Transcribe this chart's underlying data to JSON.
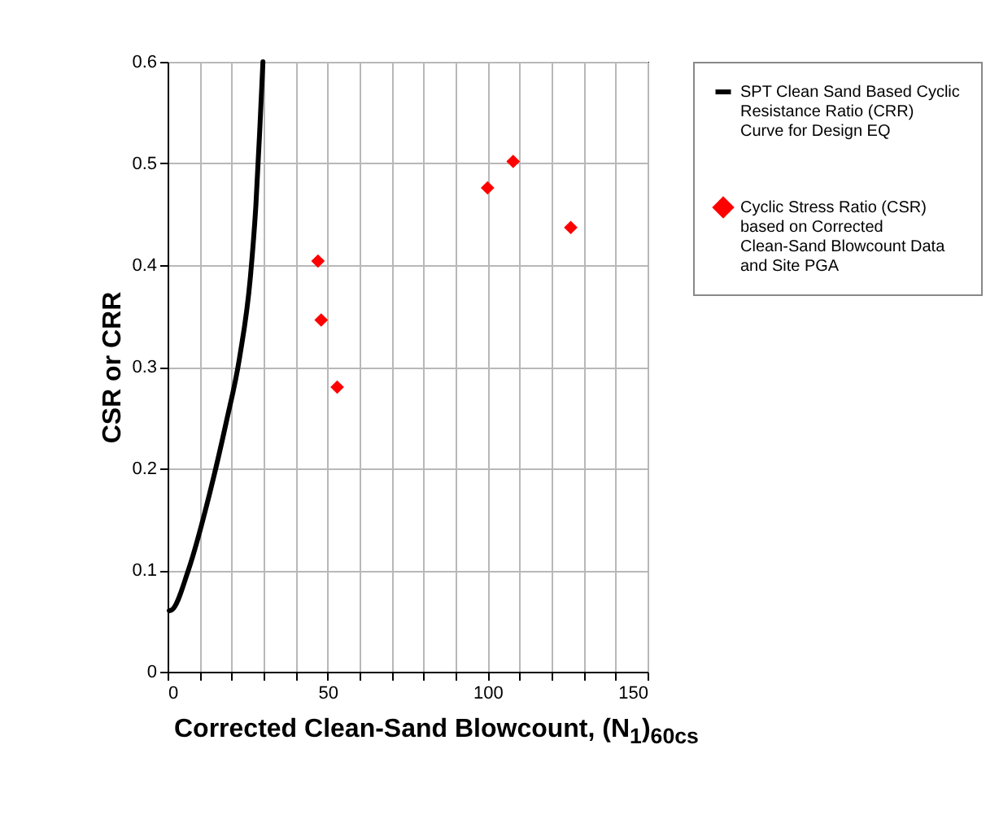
{
  "chart_data": {
    "type": "scatter",
    "xlabel": "Corrected Clean-Sand Blowcount, (N$_{1}$)$_{60cs}$",
    "ylabel": "CSR or CRR",
    "xlim": [
      0,
      150
    ],
    "ylim": [
      0,
      0.6
    ],
    "xticks": [
      0,
      {
        "value": 10,
        "label": null
      },
      {
        "value": 20,
        "label": null
      },
      {
        "value": 30,
        "label": null
      },
      {
        "value": 40,
        "label": null
      },
      50,
      {
        "value": 60,
        "label": null
      },
      {
        "value": 70,
        "label": null
      },
      {
        "value": 80,
        "label": null
      },
      {
        "value": 90,
        "label": null
      },
      100,
      {
        "value": 110,
        "label": null
      },
      {
        "value": 120,
        "label": null
      },
      {
        "value": 130,
        "label": null
      },
      {
        "value": 140,
        "label": null
      },
      150
    ],
    "yticks": [
      0,
      0.1,
      0.2,
      0.3,
      0.4,
      0.5,
      0.6
    ],
    "grid": true,
    "legend": "right",
    "marker": "diamond",
    "series": [
      {
        "name": "SPT Clean Sand Based Cyclic Resistance Ratio (CRR) Curve for Design EQ",
        "type": "line",
        "color": "#000000",
        "marker": "none",
        "x": [
          0.5,
          1.4,
          6.4,
          13.2,
          18.3,
          22.5,
          25.9,
          27.6,
          28.9,
          29.8
        ],
        "values": [
          0.06,
          0.061,
          0.099,
          0.176,
          0.245,
          0.309,
          0.389,
          0.459,
          0.539,
          0.6
        ]
      },
      {
        "name": "Cyclic Stress Ratio (CSR) based on Corrected Clean-Sand Blowcount Data and Site PGA",
        "color": "#ff0000",
        "x": [
          47,
          48,
          53,
          100,
          108,
          126
        ],
        "values": [
          0.404,
          0.346,
          0.28,
          0.476,
          0.502,
          0.437
        ]
      }
    ]
  }
}
